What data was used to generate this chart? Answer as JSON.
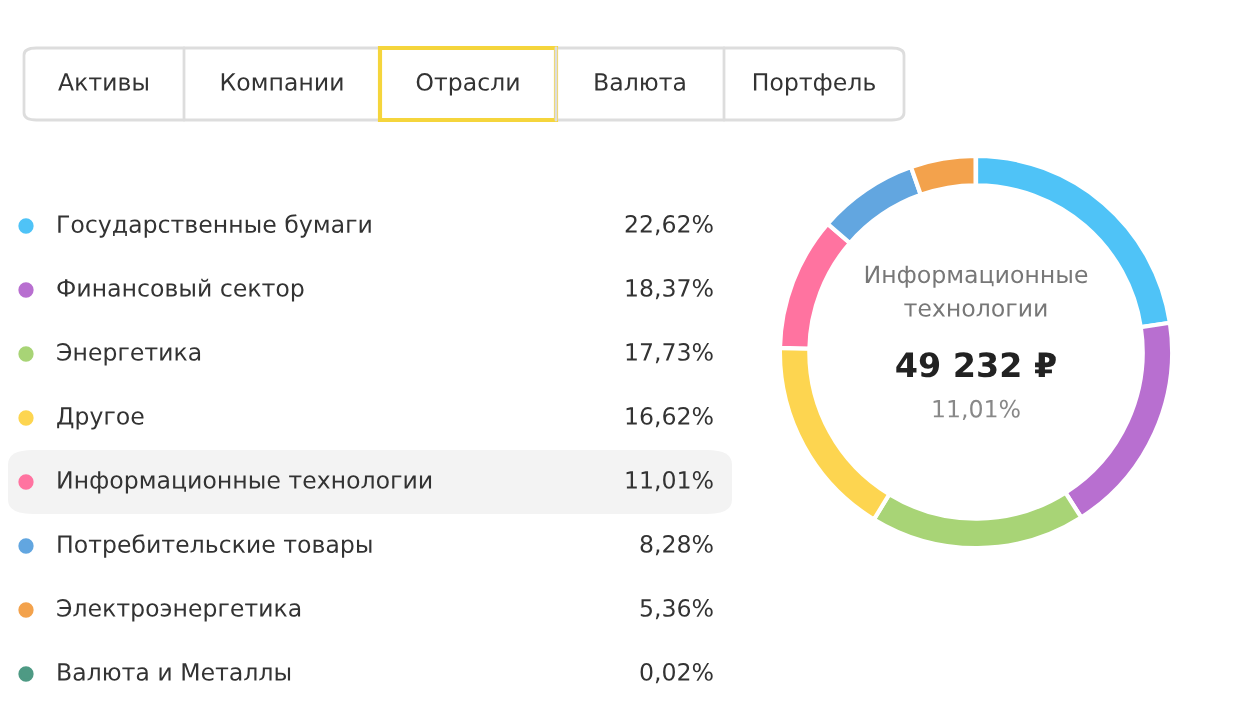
{
  "chart_data": {
    "type": "donut",
    "categories": [
      "Государственные бумаги",
      "Финансовый сектор",
      "Энергетика",
      "Другое",
      "Информационные технологии",
      "Потребительские товары",
      "Электроэнергетика",
      "Валюта и Металлы"
    ],
    "values": [
      22.62,
      18.37,
      17.73,
      16.62,
      11.01,
      8.28,
      5.36,
      0.02
    ],
    "colors": [
      "#4fc3f7",
      "#b86fd0",
      "#a8d476",
      "#fdd550",
      "#ff73a0",
      "#62a6e0",
      "#f3a24c",
      "#4e9a84"
    ],
    "value_labels": [
      "22,62%",
      "18,37%",
      "17,73%",
      "16,62%",
      "11,01%",
      "8,28%",
      "5,36%",
      "0,02%"
    ],
    "legend": "left",
    "annotations": [
      "Активы",
      "Компании",
      "Отрасли",
      "Валюта",
      "Портфель",
      "Информационные\nтехнологии",
      "49 232 ₽",
      "11,01%"
    ]
  }
}
